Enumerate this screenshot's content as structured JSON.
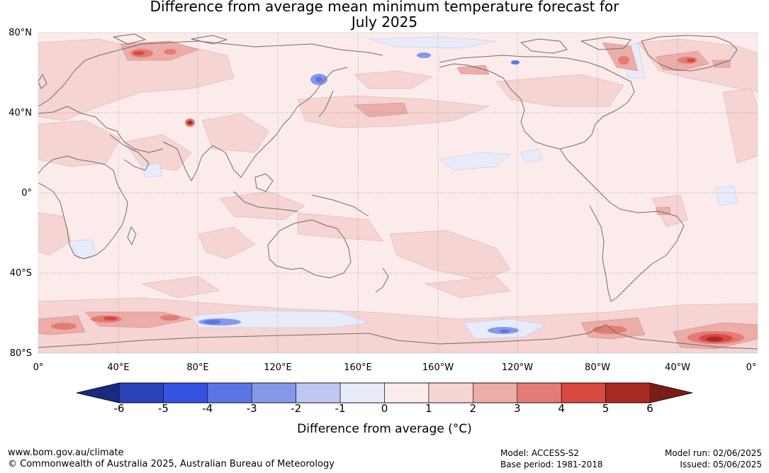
{
  "title": {
    "line1": "Difference from average mean minimum temperature forecast for",
    "line2": "July 2025"
  },
  "map": {
    "lat_labels": [
      "80°N",
      "40°N",
      "0°",
      "40°S",
      "80°S"
    ],
    "lon_labels": [
      "0°",
      "40°E",
      "80°E",
      "120°E",
      "160°E",
      "160°W",
      "120°W",
      "80°W",
      "40°W",
      "0°"
    ],
    "background_color": "#fbeceb",
    "coastline_color": "#6e6e6e"
  },
  "colorbar": {
    "ticks": [
      "-6",
      "-5",
      "-4",
      "-3",
      "-2",
      "-1",
      "0",
      "1",
      "2",
      "3",
      "4",
      "5",
      "6"
    ],
    "colors": [
      "#1b2a80",
      "#2a43b8",
      "#3452e2",
      "#5a76e6",
      "#8798ea",
      "#bfc7f2",
      "#e8ebfa",
      "#fbeceb",
      "#f5d4d3",
      "#ecaca8",
      "#e47c75",
      "#d94a40",
      "#aa2a24",
      "#7a1c19"
    ],
    "label": "Difference from average (°C)"
  },
  "footer": {
    "url": "www.bom.gov.au/climate",
    "copyright": "© Commonwealth of Australia 2025, Australian Bureau of Meteorology",
    "model": "Model: ACCESS-S2",
    "base_period": "Base period: 1981-2018",
    "model_run": "Model run: 02/06/2025",
    "issued": "Issued: 05/06/2025"
  }
}
